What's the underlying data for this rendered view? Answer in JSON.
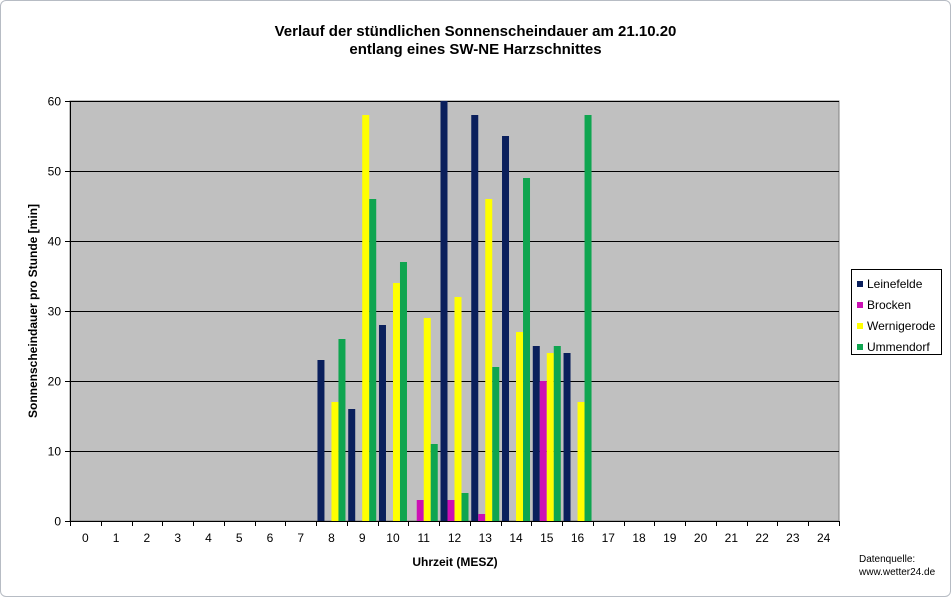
{
  "chart_data": {
    "type": "bar",
    "title": "Verlauf der stündlichen Sonnenscheindauer am 21.10.20",
    "subtitle": "entlang eines SW-NE Harzschnittes",
    "xlabel": "Uhrzeit (MESZ)",
    "ylabel": "Sonnenscheindauer pro Stunde [min]",
    "ylim": [
      0,
      60
    ],
    "yticks": [
      "0",
      "10",
      "20",
      "30",
      "40",
      "50",
      "60"
    ],
    "categories": [
      "0",
      "1",
      "2",
      "3",
      "4",
      "5",
      "6",
      "7",
      "8",
      "9",
      "10",
      "11",
      "12",
      "13",
      "14",
      "15",
      "16",
      "17",
      "18",
      "19",
      "20",
      "21",
      "22",
      "23",
      "24"
    ],
    "grid": true,
    "legend_position": "right",
    "series": [
      {
        "name": "Leinefelde",
        "color": "#0a1f5c",
        "values": [
          0,
          0,
          0,
          0,
          0,
          0,
          0,
          0,
          23,
          16,
          28,
          0,
          60,
          58,
          55,
          25,
          24,
          0,
          0,
          0,
          0,
          0,
          0,
          0,
          0
        ]
      },
      {
        "name": "Brocken",
        "color": "#cc10b4",
        "values": [
          0,
          0,
          0,
          0,
          0,
          0,
          0,
          0,
          0,
          0,
          0,
          3,
          3,
          1,
          0,
          20,
          0,
          0,
          0,
          0,
          0,
          0,
          0,
          0,
          0
        ]
      },
      {
        "name": "Wernigerode",
        "color": "#ffff00",
        "values": [
          0,
          0,
          0,
          0,
          0,
          0,
          0,
          0,
          17,
          58,
          34,
          29,
          32,
          46,
          27,
          24,
          17,
          0,
          0,
          0,
          0,
          0,
          0,
          0,
          0
        ]
      },
      {
        "name": "Ummendorf",
        "color": "#0fa550",
        "values": [
          0,
          0,
          0,
          0,
          0,
          0,
          0,
          0,
          26,
          46,
          37,
          11,
          4,
          22,
          49,
          25,
          58,
          0,
          0,
          0,
          0,
          0,
          0,
          0,
          0
        ]
      }
    ],
    "source_label": "Datenquelle:",
    "source_url": "www.wetter24.de",
    "plot_background": "#c0c0c0"
  }
}
